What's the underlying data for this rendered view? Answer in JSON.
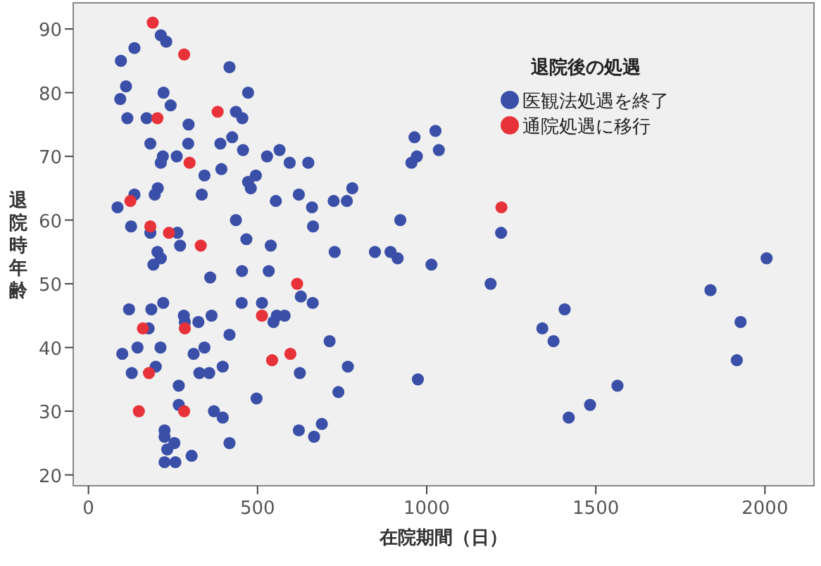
{
  "chart_data": {
    "type": "scatter",
    "xlabel": "在院期間（日）",
    "ylabel": "退院時年齢",
    "legend_title": "退院後の処遇",
    "legend": "top right",
    "marker": "circle",
    "xlim": [
      -45,
      2145
    ],
    "ylim": [
      18.3,
      94.1
    ],
    "xticks": [
      0,
      500,
      1000,
      1500,
      2000
    ],
    "yticks": [
      20,
      30,
      40,
      50,
      60,
      70,
      80,
      90
    ],
    "series": [
      {
        "name": "医観法処遇を終了",
        "color": "#3a4fa8",
        "x": [
          214,
          230,
          136,
          96,
          417,
          111,
          94,
          222,
          472,
          243,
          115,
          172,
          436,
          455,
          296,
          183,
          295,
          390,
          425,
          457,
          220,
          214,
          261,
          528,
          565,
          595,
          650,
          343,
          393,
          472,
          495,
          480,
          136,
          205,
          196,
          335,
          554,
          622,
          661,
          725,
          764,
          780,
          86,
          436,
          126,
          183,
          263,
          664,
          467,
          271,
          539,
          728,
          204,
          214,
          192,
          360,
          454,
          533,
          628,
          663,
          453,
          513,
          120,
          186,
          221,
          557,
          580,
          547,
          282,
          285,
          325,
          364,
          178,
          417,
          713,
          100,
          145,
          213,
          311,
          343,
          767,
          128,
          199,
          328,
          357,
          397,
          625,
          739,
          267,
          497,
          267,
          371,
          397,
          622,
          690,
          667,
          225,
          225,
          254,
          233,
          417,
          305,
          225,
          257,
          964,
          1026,
          971,
          955,
          1036,
          1220,
          922,
          847,
          893,
          914,
          1014,
          1189,
          1408,
          1342,
          1375,
          974,
          1564,
          1483,
          1420,
          2005,
          1839,
          1928,
          1917
        ],
        "values": [
          89,
          88,
          87,
          85,
          84,
          81,
          79,
          80,
          80,
          78,
          76,
          76,
          77,
          76,
          75,
          72,
          72,
          72,
          73,
          71,
          70,
          69,
          70,
          70,
          71,
          69,
          69,
          67,
          68,
          66,
          67,
          65,
          64,
          65,
          64,
          64,
          63,
          64,
          62,
          63,
          63,
          65,
          62,
          60,
          59,
          58,
          58,
          59,
          57,
          56,
          56,
          55,
          55,
          54,
          53,
          51,
          52,
          52,
          48,
          47,
          47,
          47,
          46,
          46,
          47,
          45,
          45,
          44,
          45,
          44,
          44,
          45,
          43,
          42,
          41,
          39,
          40,
          40,
          39,
          40,
          37,
          36,
          37,
          36,
          36,
          37,
          36,
          33,
          34,
          32,
          31,
          30,
          29,
          27,
          28,
          26,
          27,
          26,
          25,
          24,
          25,
          23,
          22,
          22,
          73,
          74,
          70,
          69,
          71,
          58,
          60,
          55,
          55,
          54,
          53,
          50,
          46,
          43,
          41,
          35,
          34,
          31,
          29,
          54,
          49,
          44,
          38
        ]
      },
      {
        "name": "通院処遇に移行",
        "color": "#e8323a",
        "x": [
          190,
          283,
          204,
          382,
          299,
          124,
          183,
          238,
          332,
          617,
          513,
          161,
          285,
          597,
          543,
          179,
          149,
          283,
          1221
        ],
        "values": [
          91,
          86,
          76,
          77,
          69,
          63,
          59,
          58,
          56,
          50,
          45,
          43,
          43,
          39,
          38,
          36,
          30,
          30,
          62
        ]
      }
    ]
  }
}
